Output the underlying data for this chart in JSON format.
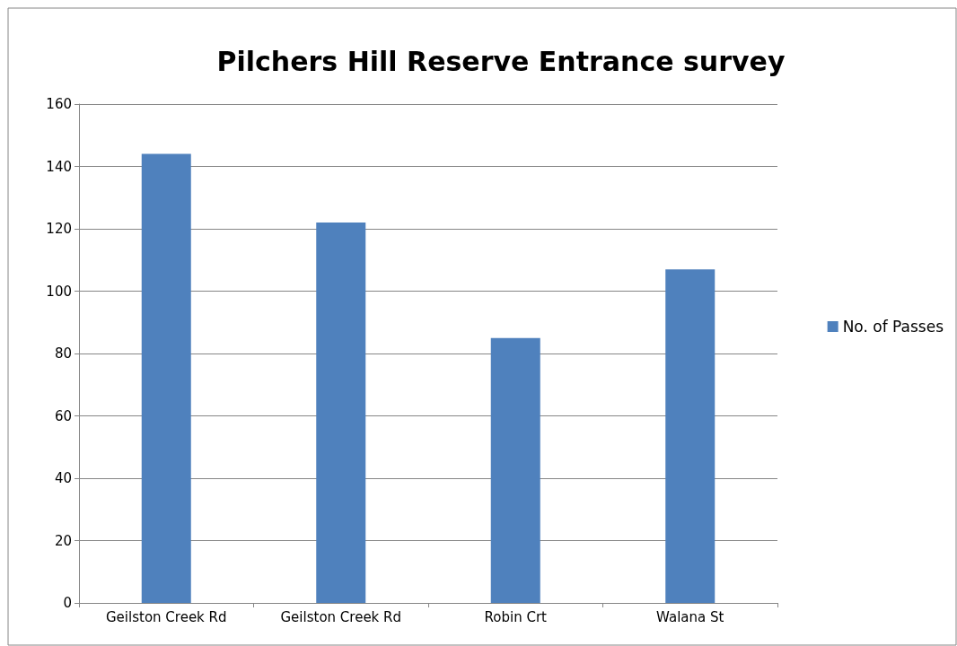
{
  "chart_data": {
    "type": "bar",
    "title": "Pilchers Hill Reserve Entrance survey",
    "categories": [
      "Geilston Creek Rd",
      "Geilston Creek Rd",
      "Robin Crt",
      "Walana St"
    ],
    "series": [
      {
        "name": "No. of Passes",
        "color": "#4f81bd",
        "values": [
          144,
          122,
          85,
          107
        ]
      }
    ],
    "ylim": [
      0,
      160
    ],
    "yticks": [
      0,
      20,
      40,
      60,
      80,
      100,
      120,
      140,
      160
    ],
    "grid": "y",
    "legend": "right"
  }
}
